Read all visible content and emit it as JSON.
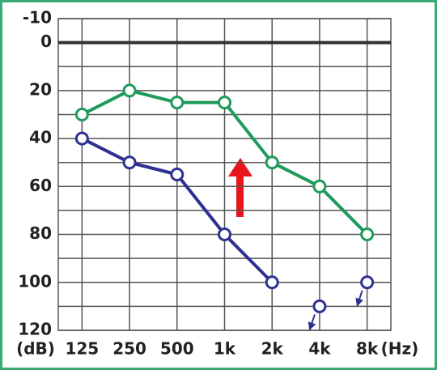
{
  "chart_data": {
    "type": "line",
    "categories": [
      "125",
      "250",
      "500",
      "1k",
      "2k",
      "4k",
      "8k"
    ],
    "y_unit": "(dB)",
    "x_unit": "(Hz)",
    "ylim": [
      -10,
      120
    ],
    "yticks": [
      -10,
      0,
      20,
      40,
      60,
      80,
      100,
      120
    ],
    "minor_yticks": [
      10,
      30,
      50,
      70,
      90,
      110
    ],
    "y_inverted": true,
    "grid": true,
    "series": [
      {
        "color": "#1e9a5c",
        "values": [
          30,
          20,
          25,
          25,
          50,
          60,
          80
        ],
        "connected": true
      },
      {
        "color": "#2e3192",
        "values": [
          40,
          50,
          55,
          80,
          100,
          null,
          null
        ],
        "connected": true
      },
      {
        "color": "#2e3192",
        "values": [
          null,
          null,
          null,
          null,
          null,
          110,
          100
        ],
        "connected": false,
        "no_response": true
      }
    ]
  }
}
